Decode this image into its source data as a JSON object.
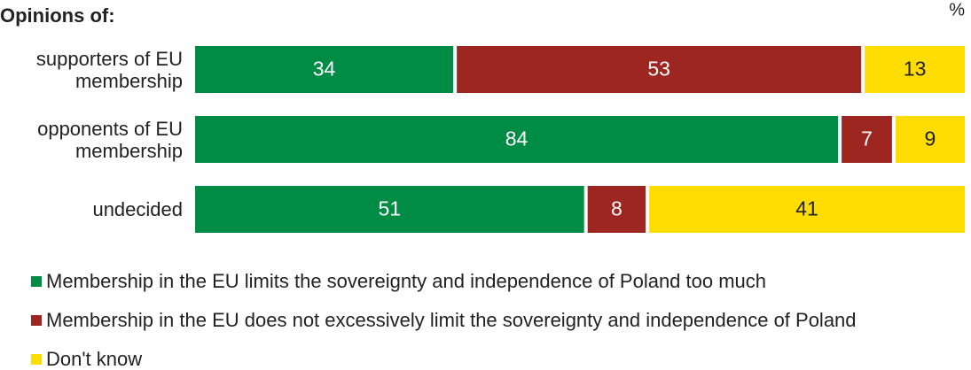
{
  "chart_data": {
    "type": "stacked-bar-horizontal",
    "title": "Opinions of:",
    "unit": "%",
    "categories": [
      "supporters of EU membership",
      "opponents of EU membership",
      "undecided"
    ],
    "xlim": [
      0,
      100
    ],
    "series": [
      {
        "name": "Membership in the EU limits the sovereignty and independence of Poland too much",
        "color": "#008c45",
        "label_color": "#ffffff",
        "values": [
          34,
          84,
          51
        ]
      },
      {
        "name": "Membership in the EU does not excessively limit the sovereignty and independence of Poland",
        "color": "#9e2621",
        "label_color": "#ffffff",
        "values": [
          53,
          7,
          8
        ]
      },
      {
        "name": "Don't know",
        "color": "#ffdd00",
        "label_color": "#222222",
        "values": [
          13,
          9,
          41
        ]
      }
    ]
  }
}
